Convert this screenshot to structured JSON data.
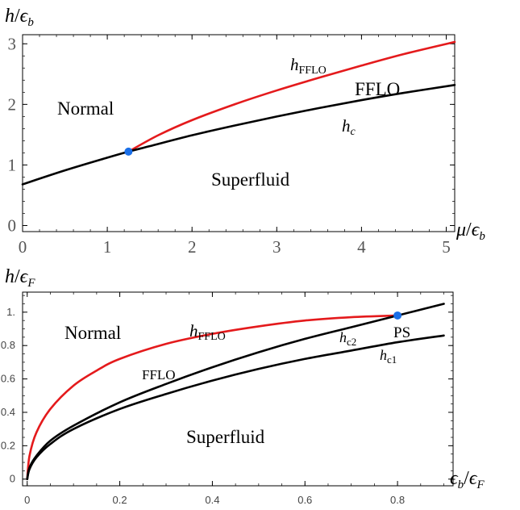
{
  "chart_data": [
    {
      "type": "line",
      "title": "",
      "ylabel": "h/ϵb",
      "xlabel": "μ/ϵb",
      "xlim": [
        0,
        5.1
      ],
      "ylim": [
        -0.1,
        3.15
      ],
      "xticks": [
        "0",
        "1",
        "2",
        "3",
        "4",
        "5"
      ],
      "yticks": [
        "0",
        "1",
        "2",
        "3"
      ],
      "series": [
        {
          "name": "hFFLO",
          "color": "#e41a1c",
          "x": [
            1.25,
            1.6,
            2.0,
            2.5,
            3.0,
            3.5,
            4.0,
            4.5,
            5.1
          ],
          "y": [
            1.22,
            1.49,
            1.74,
            2.0,
            2.23,
            2.44,
            2.64,
            2.83,
            3.03
          ]
        },
        {
          "name": "hc",
          "color": "#000000",
          "x": [
            0,
            0.5,
            1.0,
            1.25,
            1.5,
            2.0,
            2.5,
            3.0,
            3.5,
            4.0,
            4.5,
            5.1
          ],
          "y": [
            0.68,
            0.91,
            1.12,
            1.22,
            1.31,
            1.49,
            1.65,
            1.8,
            1.94,
            2.07,
            2.19,
            2.32
          ]
        }
      ],
      "points": [
        {
          "x": 1.25,
          "y": 1.22,
          "color": "#1a6fe8"
        }
      ],
      "annotations": [
        {
          "text": "Normal",
          "x": 0.75,
          "y": 2.0
        },
        {
          "text": "FFLO",
          "x": 4.2,
          "y": 2.3
        },
        {
          "text": "Superfluid",
          "x": 3.0,
          "y": 0.75
        },
        {
          "text": "hFFLO",
          "x": 3.8,
          "y": 2.7
        },
        {
          "text": "hc",
          "x": 4.5,
          "y": 1.7
        }
      ]
    },
    {
      "type": "line",
      "title": "",
      "ylabel": "h/ϵF",
      "xlabel": "ϵb/ϵF",
      "xlim": [
        -0.01,
        0.92
      ],
      "ylim": [
        -0.04,
        1.12
      ],
      "xticks": [
        "0",
        "0.2",
        "0.4",
        "0.6",
        "0.8"
      ],
      "yticks": [
        "0",
        "0.2",
        "0.4",
        "0.6",
        "0.8",
        "1."
      ],
      "series": [
        {
          "name": "hFFLO",
          "color": "#e41a1c",
          "x": [
            0,
            0.005,
            0.02,
            0.05,
            0.1,
            0.15,
            0.2,
            0.3,
            0.4,
            0.5,
            0.6,
            0.7,
            0.8
          ],
          "y": [
            0,
            0.14,
            0.28,
            0.42,
            0.56,
            0.65,
            0.72,
            0.81,
            0.87,
            0.915,
            0.95,
            0.97,
            0.98
          ]
        },
        {
          "name": "hc2",
          "color": "#000000",
          "x": [
            0,
            0.005,
            0.02,
            0.05,
            0.1,
            0.2,
            0.3,
            0.4,
            0.5,
            0.6,
            0.7,
            0.8,
            0.9
          ],
          "y": [
            0,
            0.07,
            0.14,
            0.23,
            0.32,
            0.46,
            0.57,
            0.67,
            0.76,
            0.84,
            0.91,
            0.98,
            1.05
          ]
        },
        {
          "name": "hc1",
          "color": "#000000",
          "x": [
            0,
            0.005,
            0.02,
            0.05,
            0.1,
            0.2,
            0.3,
            0.4,
            0.5,
            0.6,
            0.7,
            0.8,
            0.9
          ],
          "y": [
            0,
            0.06,
            0.13,
            0.21,
            0.3,
            0.42,
            0.51,
            0.59,
            0.66,
            0.72,
            0.77,
            0.82,
            0.86
          ]
        }
      ],
      "points": [
        {
          "x": 0.8,
          "y": 0.98,
          "color": "#1a6fe8"
        }
      ],
      "annotations": [
        {
          "text": "Normal",
          "x": 0.15,
          "y": 0.83
        },
        {
          "text": "FFLO",
          "x": 0.27,
          "y": 0.61
        },
        {
          "text": "Superfluid",
          "x": 0.44,
          "y": 0.22
        },
        {
          "text": "PS",
          "x": 0.81,
          "y": 0.83
        },
        {
          "text": "hFFLO",
          "x": 0.4,
          "y": 0.8
        },
        {
          "text": "hc2",
          "x": 0.68,
          "y": 0.78
        },
        {
          "text": "hc1",
          "x": 0.76,
          "y": 0.72
        }
      ]
    }
  ]
}
